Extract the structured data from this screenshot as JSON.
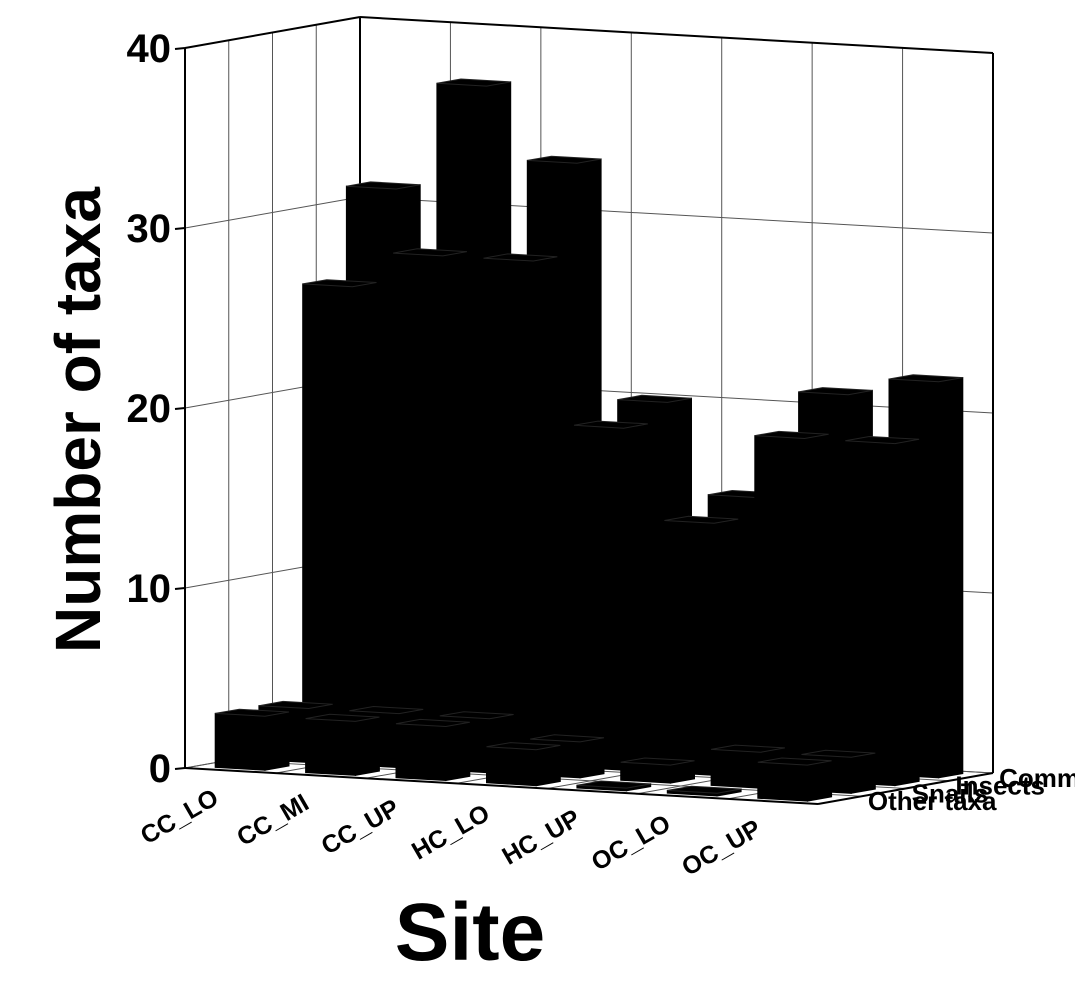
{
  "chart_data": {
    "type": "bar",
    "subtype": "3d-bar",
    "title": "",
    "xlabel": "Site",
    "ylabel": "Number of taxa",
    "ylim": [
      0,
      40
    ],
    "yticks": [
      "0",
      "10",
      "20",
      "30",
      "40"
    ],
    "categories": [
      "CC_LO",
      "CC_MI",
      "CC_UP",
      "HC_LO",
      "HC_UP",
      "OC_LO",
      "OC_UP"
    ],
    "series": [
      {
        "name": "Other taxa",
        "values": [
          3,
          3,
          3,
          2,
          0,
          0,
          2
        ]
      },
      {
        "name": "Snails",
        "values": [
          3,
          3,
          3,
          2,
          1,
          2,
          2
        ]
      },
      {
        "name": "Insects",
        "values": [
          26,
          28,
          28,
          19,
          14,
          19,
          19
        ]
      },
      {
        "name": "Community",
        "values": [
          31,
          37,
          33,
          20,
          15,
          21,
          22
        ]
      }
    ],
    "grid": true,
    "bar_color": "#000000"
  }
}
